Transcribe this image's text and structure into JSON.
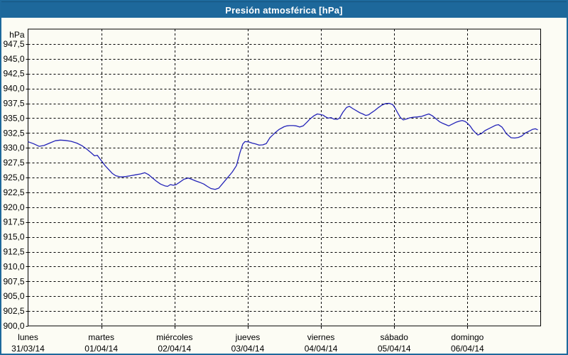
{
  "window": {
    "title": "Presión atmosférica [hPa]"
  },
  "colors": {
    "titlebar": "#1d689b",
    "border": "#1e699c",
    "background": "#fcfcf4",
    "grid": "#000000",
    "text": "#000000",
    "title_text": "#ffffff",
    "line": "#2323b8"
  },
  "chart_data": {
    "type": "line",
    "title": "Presión atmosférica [hPa]",
    "ylabel_unit": "hPa",
    "ylim": [
      900,
      950
    ],
    "y_tick_step": 2.5,
    "y_ticks": [
      {
        "v": 900.0,
        "label": "900,0"
      },
      {
        "v": 902.5,
        "label": "902,5"
      },
      {
        "v": 905.0,
        "label": "905,0"
      },
      {
        "v": 907.5,
        "label": "907,5"
      },
      {
        "v": 910.0,
        "label": "910,0"
      },
      {
        "v": 912.5,
        "label": "912,5"
      },
      {
        "v": 915.0,
        "label": "915,0"
      },
      {
        "v": 917.5,
        "label": "917,5"
      },
      {
        "v": 920.0,
        "label": "920,0"
      },
      {
        "v": 922.5,
        "label": "922,5"
      },
      {
        "v": 925.0,
        "label": "925,0"
      },
      {
        "v": 927.5,
        "label": "927,5"
      },
      {
        "v": 930.0,
        "label": "930,0"
      },
      {
        "v": 932.5,
        "label": "932,5"
      },
      {
        "v": 935.0,
        "label": "935,0"
      },
      {
        "v": 937.5,
        "label": "937,5"
      },
      {
        "v": 940.0,
        "label": "940,0"
      },
      {
        "v": 942.5,
        "label": "942,5"
      },
      {
        "v": 945.0,
        "label": "945,0"
      },
      {
        "v": 947.5,
        "label": "947,5"
      }
    ],
    "xlim_days": [
      0,
      7
    ],
    "x_days": [
      {
        "name": "lunes",
        "date": "31/03/14"
      },
      {
        "name": "martes",
        "date": "01/04/14"
      },
      {
        "name": "miércoles",
        "date": "02/04/14"
      },
      {
        "name": "jueves",
        "date": "03/04/14"
      },
      {
        "name": "viernes",
        "date": "04/04/14"
      },
      {
        "name": "sábado",
        "date": "05/04/14"
      },
      {
        "name": "domingo",
        "date": "06/04/14"
      }
    ],
    "grid": "dashed",
    "legend": "none",
    "series": [
      {
        "name": "Presión atmosférica",
        "color": "#2323b8",
        "points": [
          [
            0.005,
            931.0
          ],
          [
            0.073,
            930.7
          ],
          [
            0.15,
            930.25
          ],
          [
            0.218,
            930.4
          ],
          [
            0.296,
            930.8
          ],
          [
            0.373,
            931.2
          ],
          [
            0.441,
            931.3
          ],
          [
            0.509,
            931.25
          ],
          [
            0.587,
            931.1
          ],
          [
            0.664,
            930.8
          ],
          [
            0.732,
            930.4
          ],
          [
            0.8,
            929.8
          ],
          [
            0.858,
            929.2
          ],
          [
            0.907,
            928.65
          ],
          [
            0.945,
            928.75
          ],
          [
            1.003,
            927.8
          ],
          [
            1.052,
            927.0
          ],
          [
            1.1,
            926.35
          ],
          [
            1.149,
            925.7
          ],
          [
            1.197,
            925.3
          ],
          [
            1.265,
            925.1
          ],
          [
            1.333,
            925.15
          ],
          [
            1.401,
            925.3
          ],
          [
            1.469,
            925.45
          ],
          [
            1.537,
            925.6
          ],
          [
            1.595,
            925.8
          ],
          [
            1.643,
            925.5
          ],
          [
            1.692,
            925.0
          ],
          [
            1.75,
            924.4
          ],
          [
            1.808,
            923.9
          ],
          [
            1.866,
            923.6
          ],
          [
            1.905,
            923.5
          ],
          [
            1.944,
            923.8
          ],
          [
            1.983,
            923.7
          ],
          [
            2.021,
            923.8
          ],
          [
            2.07,
            924.2
          ],
          [
            2.128,
            924.7
          ],
          [
            2.186,
            924.9
          ],
          [
            2.235,
            924.7
          ],
          [
            2.283,
            924.45
          ],
          [
            2.341,
            924.2
          ],
          [
            2.4,
            923.9
          ],
          [
            2.448,
            923.5
          ],
          [
            2.497,
            923.15
          ],
          [
            2.555,
            923.0
          ],
          [
            2.604,
            923.2
          ],
          [
            2.652,
            923.9
          ],
          [
            2.72,
            924.9
          ],
          [
            2.787,
            925.9
          ],
          [
            2.846,
            927.0
          ],
          [
            2.894,
            929.2
          ],
          [
            2.933,
            930.65
          ],
          [
            2.962,
            931.05
          ],
          [
            3.011,
            931.0
          ],
          [
            3.059,
            930.8
          ],
          [
            3.108,
            930.65
          ],
          [
            3.156,
            930.45
          ],
          [
            3.205,
            930.5
          ],
          [
            3.253,
            930.7
          ],
          [
            3.302,
            931.7
          ],
          [
            3.37,
            932.5
          ],
          [
            3.428,
            933.1
          ],
          [
            3.496,
            933.55
          ],
          [
            3.534,
            933.7
          ],
          [
            3.573,
            933.75
          ],
          [
            3.622,
            933.75
          ],
          [
            3.66,
            933.7
          ],
          [
            3.709,
            933.5
          ],
          [
            3.757,
            933.7
          ],
          [
            3.806,
            934.3
          ],
          [
            3.854,
            934.9
          ],
          [
            3.903,
            935.4
          ],
          [
            3.951,
            935.7
          ],
          [
            3.995,
            935.6
          ],
          [
            4.029,
            935.5
          ],
          [
            4.058,
            935.25
          ],
          [
            4.097,
            935.0
          ],
          [
            4.136,
            935.1
          ],
          [
            4.174,
            934.85
          ],
          [
            4.223,
            934.8
          ],
          [
            4.252,
            935.0
          ],
          [
            4.3,
            936.0
          ],
          [
            4.349,
            936.8
          ],
          [
            4.387,
            937.0
          ],
          [
            4.436,
            936.6
          ],
          [
            4.484,
            936.25
          ],
          [
            4.533,
            935.9
          ],
          [
            4.571,
            935.7
          ],
          [
            4.61,
            935.45
          ],
          [
            4.649,
            935.55
          ],
          [
            4.688,
            935.9
          ],
          [
            4.736,
            936.3
          ],
          [
            4.785,
            936.8
          ],
          [
            4.833,
            937.2
          ],
          [
            4.882,
            937.45
          ],
          [
            4.93,
            937.5
          ],
          [
            4.979,
            937.3
          ],
          [
            5.008,
            936.8
          ],
          [
            5.047,
            935.9
          ],
          [
            5.085,
            935.1
          ],
          [
            5.124,
            934.7
          ],
          [
            5.163,
            934.85
          ],
          [
            5.211,
            935.05
          ],
          [
            5.26,
            935.15
          ],
          [
            5.318,
            935.2
          ],
          [
            5.376,
            935.3
          ],
          [
            5.434,
            935.55
          ],
          [
            5.473,
            935.7
          ],
          [
            5.521,
            935.4
          ],
          [
            5.57,
            934.9
          ],
          [
            5.618,
            934.4
          ],
          [
            5.667,
            934.1
          ],
          [
            5.715,
            933.85
          ],
          [
            5.744,
            933.7
          ],
          [
            5.793,
            934.0
          ],
          [
            5.841,
            934.3
          ],
          [
            5.89,
            934.5
          ],
          [
            5.929,
            934.6
          ],
          [
            5.967,
            934.45
          ],
          [
            5.996,
            934.2
          ],
          [
            6.035,
            933.7
          ],
          [
            6.074,
            933.0
          ],
          [
            6.113,
            932.5
          ],
          [
            6.142,
            932.15
          ],
          [
            6.19,
            932.4
          ],
          [
            6.239,
            932.9
          ],
          [
            6.287,
            933.2
          ],
          [
            6.336,
            933.5
          ],
          [
            6.384,
            933.8
          ],
          [
            6.423,
            933.9
          ],
          [
            6.471,
            933.5
          ],
          [
            6.5,
            933.0
          ],
          [
            6.529,
            932.4
          ],
          [
            6.568,
            932.0
          ],
          [
            6.597,
            931.7
          ],
          [
            6.646,
            931.65
          ],
          [
            6.694,
            931.75
          ],
          [
            6.743,
            932.0
          ],
          [
            6.791,
            932.5
          ],
          [
            6.84,
            932.8
          ],
          [
            6.888,
            933.1
          ],
          [
            6.927,
            933.2
          ],
          [
            6.956,
            933.05
          ]
        ]
      }
    ]
  }
}
